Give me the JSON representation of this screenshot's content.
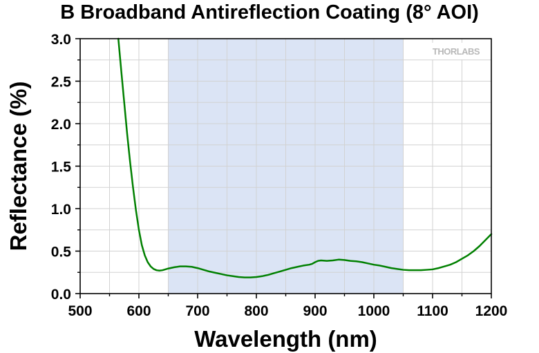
{
  "chart_data": {
    "type": "line",
    "title": "B Broadband Antireflection Coating (8° AOI)",
    "xlabel": "Wavelength (nm)",
    "ylabel": "Reflectance (%)",
    "xlim": [
      500,
      1200
    ],
    "ylim": [
      0,
      3.0
    ],
    "x_ticks": [
      "500",
      "600",
      "700",
      "800",
      "900",
      "1000",
      "1100",
      "1200"
    ],
    "y_ticks": [
      "0.0",
      "0.5",
      "1.0",
      "1.5",
      "2.0",
      "2.5",
      "3.0"
    ],
    "grid": true,
    "shaded_region": {
      "x_start": 650,
      "x_end": 1050,
      "color": "#dbe4f5"
    },
    "watermark": "THORLABS",
    "series": [
      {
        "color": "#008000",
        "x": [
          565,
          570,
          575,
          580,
          585,
          590,
          595,
          600,
          605,
          610,
          615,
          620,
          625,
          630,
          635,
          640,
          645,
          650,
          660,
          670,
          680,
          690,
          700,
          710,
          720,
          730,
          740,
          750,
          760,
          770,
          780,
          790,
          800,
          810,
          820,
          830,
          840,
          850,
          860,
          870,
          880,
          890,
          895,
          900,
          905,
          910,
          920,
          930,
          940,
          950,
          960,
          970,
          980,
          990,
          1000,
          1010,
          1020,
          1030,
          1040,
          1050,
          1060,
          1070,
          1080,
          1090,
          1100,
          1110,
          1120,
          1130,
          1140,
          1150,
          1160,
          1170,
          1180,
          1190,
          1200
        ],
        "y": [
          3.0,
          2.62,
          2.25,
          1.88,
          1.55,
          1.25,
          0.98,
          0.75,
          0.57,
          0.45,
          0.37,
          0.32,
          0.29,
          0.275,
          0.27,
          0.275,
          0.285,
          0.295,
          0.31,
          0.32,
          0.32,
          0.315,
          0.3,
          0.28,
          0.26,
          0.245,
          0.23,
          0.215,
          0.205,
          0.195,
          0.19,
          0.19,
          0.195,
          0.205,
          0.22,
          0.24,
          0.26,
          0.28,
          0.3,
          0.315,
          0.33,
          0.34,
          0.35,
          0.37,
          0.385,
          0.39,
          0.385,
          0.39,
          0.4,
          0.395,
          0.385,
          0.38,
          0.37,
          0.355,
          0.34,
          0.33,
          0.315,
          0.3,
          0.29,
          0.28,
          0.275,
          0.275,
          0.275,
          0.28,
          0.285,
          0.3,
          0.32,
          0.34,
          0.37,
          0.41,
          0.45,
          0.5,
          0.56,
          0.63,
          0.7
        ]
      }
    ]
  }
}
